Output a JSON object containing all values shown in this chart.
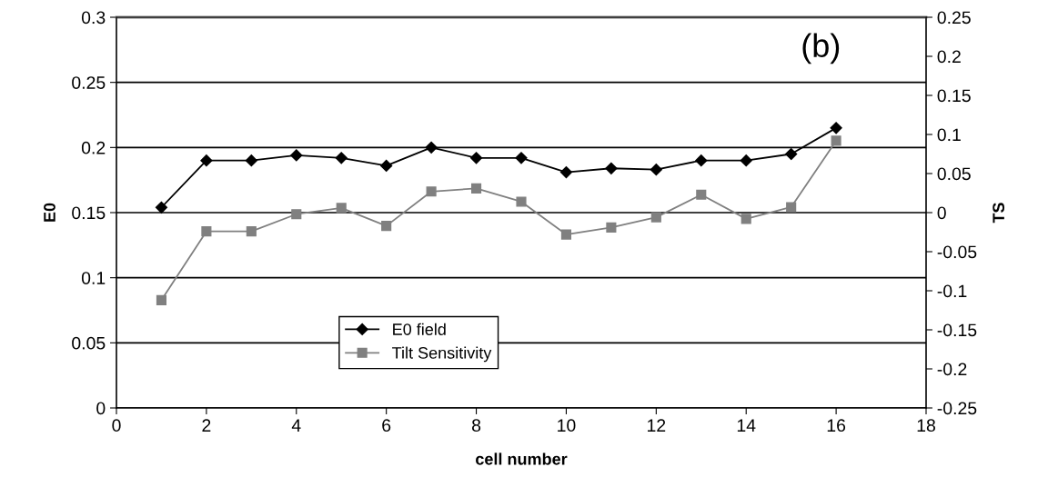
{
  "chart_data": {
    "type": "line",
    "xlabel": "cell number",
    "ylabel": "E0",
    "y2label": "TS",
    "annotations": [
      "(b)"
    ],
    "x": [
      1,
      2,
      3,
      4,
      5,
      6,
      7,
      8,
      9,
      10,
      11,
      12,
      13,
      14,
      15,
      16
    ],
    "series": [
      {
        "name": "E0 field",
        "color": "#000000",
        "marker": "diamond",
        "values": [
          0.154,
          0.19,
          0.19,
          0.194,
          0.192,
          0.186,
          0.2,
          0.192,
          0.192,
          0.181,
          0.184,
          0.183,
          0.19,
          0.19,
          0.195,
          0.215
        ]
      },
      {
        "name": "Tilt Sensitivity",
        "color": "#808080",
        "marker": "square",
        "axis": "y2",
        "values": [
          -0.112,
          -0.024,
          -0.024,
          -0.002,
          0.006,
          -0.017,
          0.027,
          0.031,
          0.014,
          -0.028,
          -0.019,
          -0.006,
          0.023,
          -0.008,
          0.007,
          0.092
        ]
      }
    ],
    "xlim": [
      0,
      18
    ],
    "xticks": [
      0,
      2,
      4,
      6,
      8,
      10,
      12,
      14,
      16,
      18
    ],
    "ylim": [
      0,
      0.3
    ],
    "yticks": [
      0,
      0.05,
      0.1,
      0.15,
      0.2,
      0.25,
      0.3
    ],
    "y2lim": [
      -0.25,
      0.25
    ],
    "y2ticks": [
      -0.25,
      -0.2,
      -0.15,
      -0.1,
      -0.05,
      0,
      0.05,
      0.1,
      0.15,
      0.2,
      0.25
    ],
    "grid": "y",
    "legend": "bottom",
    "line_style": "solid"
  }
}
